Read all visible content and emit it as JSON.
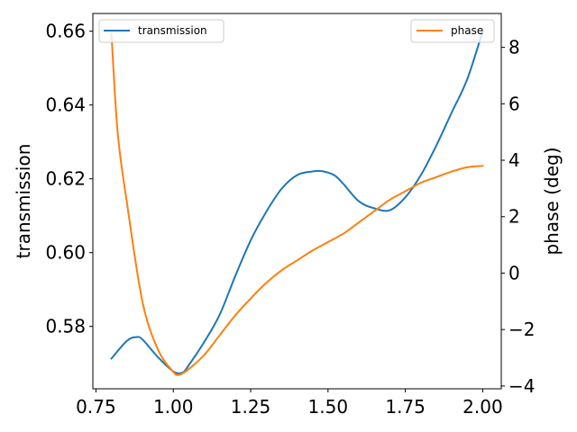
{
  "chart_data": {
    "type": "line",
    "x_axis": {
      "ticks": [
        0.75,
        1.0,
        1.25,
        1.5,
        1.75,
        2.0
      ],
      "tick_labels": [
        "0.75",
        "1.00",
        "1.25",
        "1.50",
        "1.75",
        "2.00"
      ],
      "range": [
        0.74,
        2.06
      ]
    },
    "y_left": {
      "label": "transmission",
      "ticks": [
        0.58,
        0.6,
        0.62,
        0.64,
        0.66
      ],
      "tick_labels": [
        "0.58",
        "0.60",
        "0.62",
        "0.64",
        "0.66"
      ],
      "range": [
        0.5631,
        0.6648
      ]
    },
    "y_right": {
      "label": "phase (deg)",
      "ticks": [
        -4,
        -2,
        0,
        2,
        4,
        6,
        8
      ],
      "tick_labels": [
        "−4",
        "−2",
        "0",
        "2",
        "4",
        "6",
        "8"
      ],
      "range": [
        -4.1,
        9.2
      ]
    },
    "series": [
      {
        "name": "transmission",
        "axis": "left",
        "color": "#1f77b4",
        "x": [
          0.8,
          0.85,
          0.88,
          0.9,
          0.95,
          1.0,
          1.03,
          1.05,
          1.1,
          1.15,
          1.2,
          1.25,
          1.3,
          1.35,
          1.4,
          1.45,
          1.48,
          1.52,
          1.55,
          1.6,
          1.65,
          1.7,
          1.75,
          1.8,
          1.85,
          1.9,
          1.95,
          2.0
        ],
        "y": [
          0.5713,
          0.5761,
          0.5771,
          0.5765,
          0.5717,
          0.5678,
          0.5675,
          0.5695,
          0.5758,
          0.5832,
          0.5936,
          0.6033,
          0.611,
          0.6173,
          0.621,
          0.622,
          0.6221,
          0.621,
          0.6186,
          0.6139,
          0.612,
          0.6115,
          0.615,
          0.621,
          0.629,
          0.638,
          0.647,
          0.66
        ]
      },
      {
        "name": "phase",
        "axis": "right",
        "color": "#ff7f0e",
        "x": [
          0.8,
          0.82,
          0.85,
          0.9,
          0.95,
          1.0,
          1.02,
          1.05,
          1.1,
          1.15,
          1.2,
          1.25,
          1.3,
          1.35,
          1.4,
          1.45,
          1.5,
          1.55,
          1.6,
          1.65,
          1.7,
          1.75,
          1.8,
          1.85,
          1.9,
          1.95,
          2.0
        ],
        "y": [
          8.5,
          5.0,
          2.5,
          -1.0,
          -2.7,
          -3.5,
          -3.6,
          -3.4,
          -2.9,
          -2.2,
          -1.5,
          -0.9,
          -0.35,
          0.1,
          0.45,
          0.8,
          1.1,
          1.4,
          1.8,
          2.2,
          2.6,
          2.9,
          3.2,
          3.4,
          3.6,
          3.75,
          3.8
        ]
      }
    ],
    "legends": [
      {
        "series": "transmission",
        "placement": "top-left"
      },
      {
        "series": "phase",
        "placement": "top-right"
      }
    ],
    "grid": false
  }
}
